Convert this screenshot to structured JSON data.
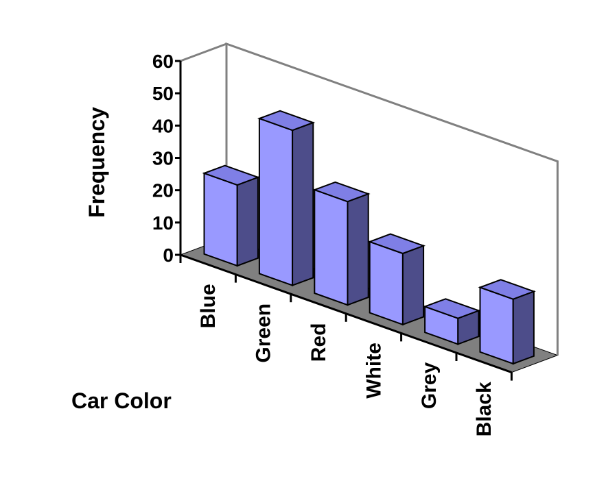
{
  "chart_data": {
    "type": "bar",
    "style": "3d-column",
    "categories": [
      "Blue",
      "Green",
      "Red",
      "White",
      "Grey",
      "Black"
    ],
    "values": [
      25,
      48,
      32,
      22,
      8,
      20
    ],
    "xlabel": "Car Color",
    "ylabel": "Frequency",
    "ylim": [
      0,
      60
    ],
    "yticks": [
      "0",
      "10",
      "20",
      "30",
      "40",
      "50",
      "60"
    ],
    "grid": false,
    "legend": "none",
    "colors": {
      "bar_front": "#9999ff",
      "bar_side": "#4d4d8a",
      "bar_top": "#7f7fe6",
      "floor": "#808080",
      "frame": "#808080",
      "outline": "#000000"
    }
  }
}
